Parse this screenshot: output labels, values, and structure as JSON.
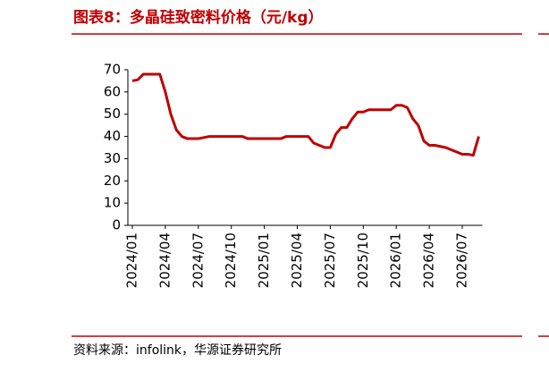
{
  "chart_data": {
    "type": "line",
    "title": "图表8：多晶硅致密料价格（元/kg）",
    "source": "资料来源：infolink，华源证券研究所",
    "categories": [
      "2024/01",
      null,
      null,
      null,
      null,
      null,
      "2024/04",
      null,
      null,
      null,
      null,
      null,
      "2024/07",
      null,
      null,
      null,
      null,
      null,
      "2024/10",
      null,
      null,
      null,
      null,
      null,
      "2025/01",
      null,
      null,
      null,
      null,
      null,
      "2025/04",
      null,
      null,
      null,
      null,
      null,
      "2025/07",
      null,
      null,
      null,
      null,
      null,
      "2025/10",
      null,
      null,
      null,
      null,
      null,
      "2026/01",
      null,
      null,
      null,
      null,
      null,
      "2026/04",
      null,
      null,
      null,
      null,
      null,
      "2026/07",
      null,
      null,
      null
    ],
    "series": [
      {
        "color": "#c00000",
        "values": [
          65,
          65.5,
          68,
          68,
          68,
          68,
          60,
          50,
          43,
          40,
          39,
          39,
          39,
          39.5,
          40,
          40,
          40,
          40,
          40,
          40,
          40,
          39,
          39,
          39,
          39,
          39,
          39,
          39,
          40,
          40,
          40,
          40,
          40,
          37,
          36,
          35,
          35,
          41,
          44,
          44,
          48,
          51,
          51,
          52,
          52,
          52,
          52,
          52,
          54,
          54,
          53,
          48,
          45,
          38,
          36,
          36,
          35.5,
          35,
          34,
          33,
          32,
          32,
          31.5,
          40
        ]
      }
    ],
    "ylim": [
      0,
      70
    ],
    "yticks": [
      0,
      10,
      20,
      30,
      40,
      50,
      60,
      70
    ]
  }
}
